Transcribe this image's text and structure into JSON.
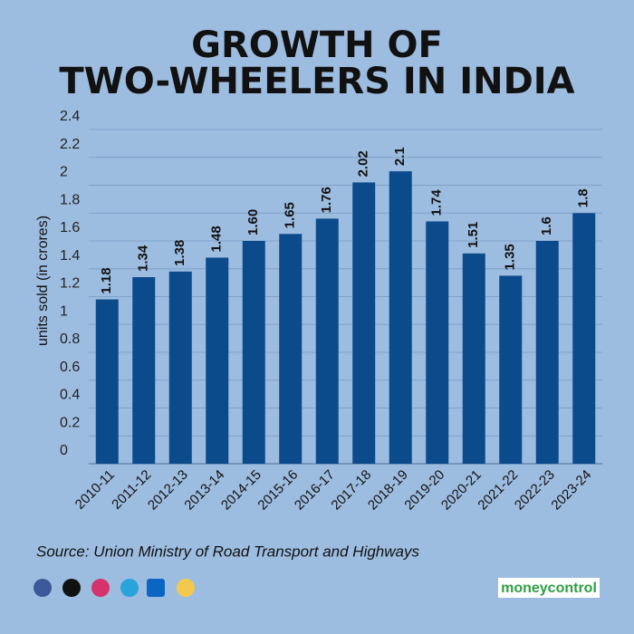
{
  "chart_data": {
    "type": "bar",
    "title": "GROWTH OF",
    "subtitle": "TWO-WHEELERS IN INDIA",
    "y_label": "units sold (in crores)",
    "categories": [
      "2010-11",
      "2011-12",
      "2012-13",
      "2013-14",
      "2014-15",
      "2015-16",
      "2016-17",
      "2017-18",
      "2018-19",
      "2019-20",
      "2020-21",
      "2021-22",
      "2022-23",
      "2023-24"
    ],
    "values": [
      1.18,
      1.34,
      1.38,
      1.48,
      1.6,
      1.65,
      1.76,
      2.02,
      2.1,
      1.74,
      1.51,
      1.35,
      1.6,
      1.8
    ],
    "value_labels": [
      "1.18",
      "1.34",
      "1.38",
      "1.48",
      "1.60",
      "1.65",
      "1.76",
      "2.02",
      "2.1",
      "1.74",
      "1.51",
      "1.35",
      "1.6",
      "1.8"
    ],
    "color": "#0b4a8b",
    "ylim": [
      0,
      2.4
    ],
    "yticks": [
      0,
      0.2,
      0.4,
      0.6,
      0.8,
      1,
      1.2,
      1.4,
      1.6,
      1.8,
      2,
      2.2,
      2.4
    ],
    "grid": true,
    "source": "Source: Union Ministry of Road Transport and Highways"
  },
  "footer": {
    "brand": "moneycontrol"
  }
}
